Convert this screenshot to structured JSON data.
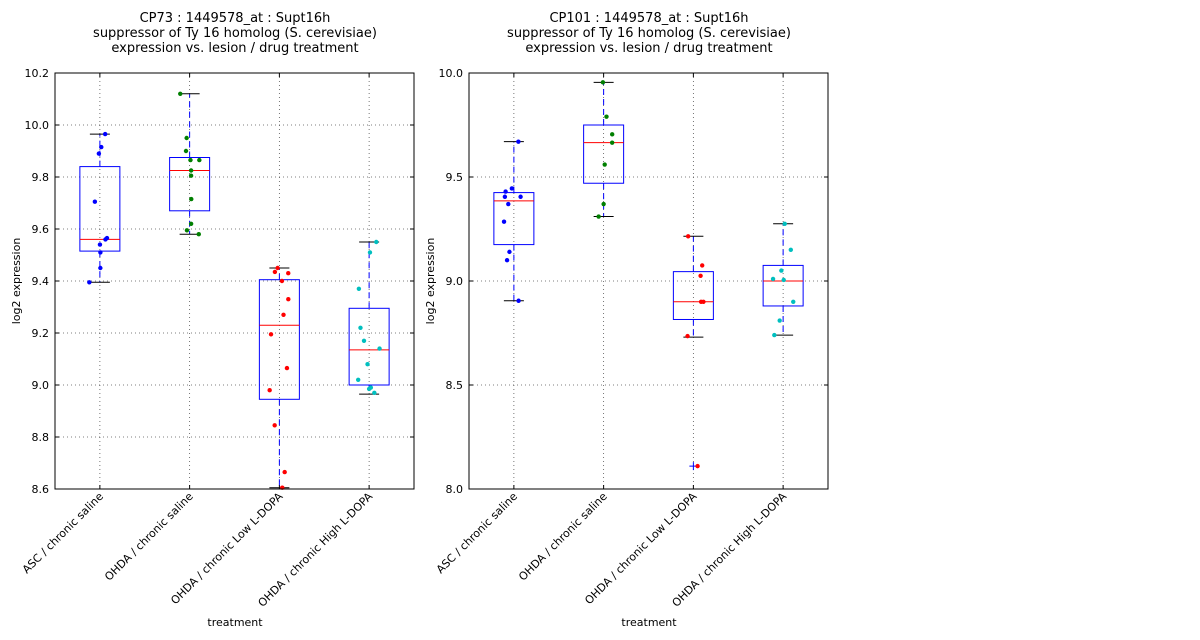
{
  "chart_data": [
    {
      "type": "box",
      "title": [
        "CP73 : 1449578_at : Supt16h",
        "suppressor of Ty 16 homolog (S. cerevisiae)",
        "expression vs. lesion / drug treatment"
      ],
      "xlabel": "treatment",
      "ylabel": "log2 expression",
      "ylim": [
        8.6,
        10.2
      ],
      "yticks": [
        "8.6",
        "8.8",
        "9.0",
        "9.2",
        "9.4",
        "9.6",
        "9.8",
        "10.0",
        "10.2"
      ],
      "grid": true,
      "categories": [
        "ASC / chronic saline",
        "OHDA / chronic saline",
        "OHDA / chronic Low L-DOPA",
        "OHDA / chronic High L-DOPA"
      ],
      "point_colors": [
        "#0000ff",
        "#007f00",
        "#ff0000",
        "#00bfbf"
      ],
      "boxes": [
        {
          "q1": 9.515,
          "median": 9.56,
          "q3": 9.84,
          "whisker_low": 9.395,
          "whisker_high": 9.965,
          "outliers": []
        },
        {
          "q1": 9.67,
          "median": 9.825,
          "q3": 9.875,
          "whisker_low": 9.58,
          "whisker_high": 10.12,
          "outliers": []
        },
        {
          "q1": 8.945,
          "median": 9.23,
          "q3": 9.405,
          "whisker_low": 8.605,
          "whisker_high": 9.45,
          "outliers": []
        },
        {
          "q1": 9.0,
          "median": 9.135,
          "q3": 9.295,
          "whisker_low": 8.965,
          "whisker_high": 9.55,
          "outliers": []
        }
      ],
      "points": [
        [
          9.965,
          9.915,
          9.89,
          9.705,
          9.565,
          9.56,
          9.54,
          9.51,
          9.45,
          9.395
        ],
        [
          10.12,
          9.95,
          9.9,
          9.865,
          9.865,
          9.825,
          9.805,
          9.715,
          9.62,
          9.595,
          9.58
        ],
        [
          9.45,
          9.435,
          9.43,
          9.4,
          9.33,
          9.27,
          9.195,
          9.065,
          8.98,
          8.845,
          8.665,
          8.605
        ],
        [
          9.55,
          9.51,
          9.37,
          9.22,
          9.17,
          9.14,
          9.08,
          9.02,
          8.985,
          8.99,
          8.97
        ]
      ]
    },
    {
      "type": "box",
      "title": [
        "CP101 : 1449578_at : Supt16h",
        "suppressor of Ty 16 homolog (S. cerevisiae)",
        "expression vs. lesion / drug treatment"
      ],
      "xlabel": "treatment",
      "ylabel": "log2 expression",
      "ylim": [
        8.0,
        10.0
      ],
      "yticks": [
        "8.0",
        "8.5",
        "9.0",
        "9.5",
        "10.0"
      ],
      "grid": true,
      "categories": [
        "ASC / chronic saline",
        "OHDA / chronic saline",
        "OHDA / chronic Low L-DOPA",
        "OHDA / chronic High L-DOPA"
      ],
      "point_colors": [
        "#0000ff",
        "#007f00",
        "#ff0000",
        "#00bfbf"
      ],
      "boxes": [
        {
          "q1": 9.175,
          "median": 9.385,
          "q3": 9.425,
          "whisker_low": 8.905,
          "whisker_high": 9.67,
          "outliers": []
        },
        {
          "q1": 9.47,
          "median": 9.665,
          "q3": 9.75,
          "whisker_low": 9.31,
          "whisker_high": 9.955,
          "outliers": []
        },
        {
          "q1": 8.815,
          "median": 8.9,
          "q3": 9.045,
          "whisker_low": 8.73,
          "whisker_high": 9.215,
          "outliers": [
            8.11
          ]
        },
        {
          "q1": 8.88,
          "median": 9.0,
          "q3": 9.075,
          "whisker_low": 8.74,
          "whisker_high": 9.275,
          "outliers": []
        }
      ],
      "points": [
        [
          9.67,
          9.445,
          9.43,
          9.405,
          9.405,
          9.37,
          9.285,
          9.14,
          9.1,
          8.905
        ],
        [
          9.955,
          9.79,
          9.705,
          9.665,
          9.56,
          9.37,
          9.31
        ],
        [
          9.215,
          9.075,
          9.025,
          8.9,
          8.9,
          8.735,
          8.11
        ],
        [
          9.275,
          9.15,
          9.05,
          9.01,
          9.005,
          8.9,
          8.81,
          8.74
        ]
      ]
    }
  ]
}
